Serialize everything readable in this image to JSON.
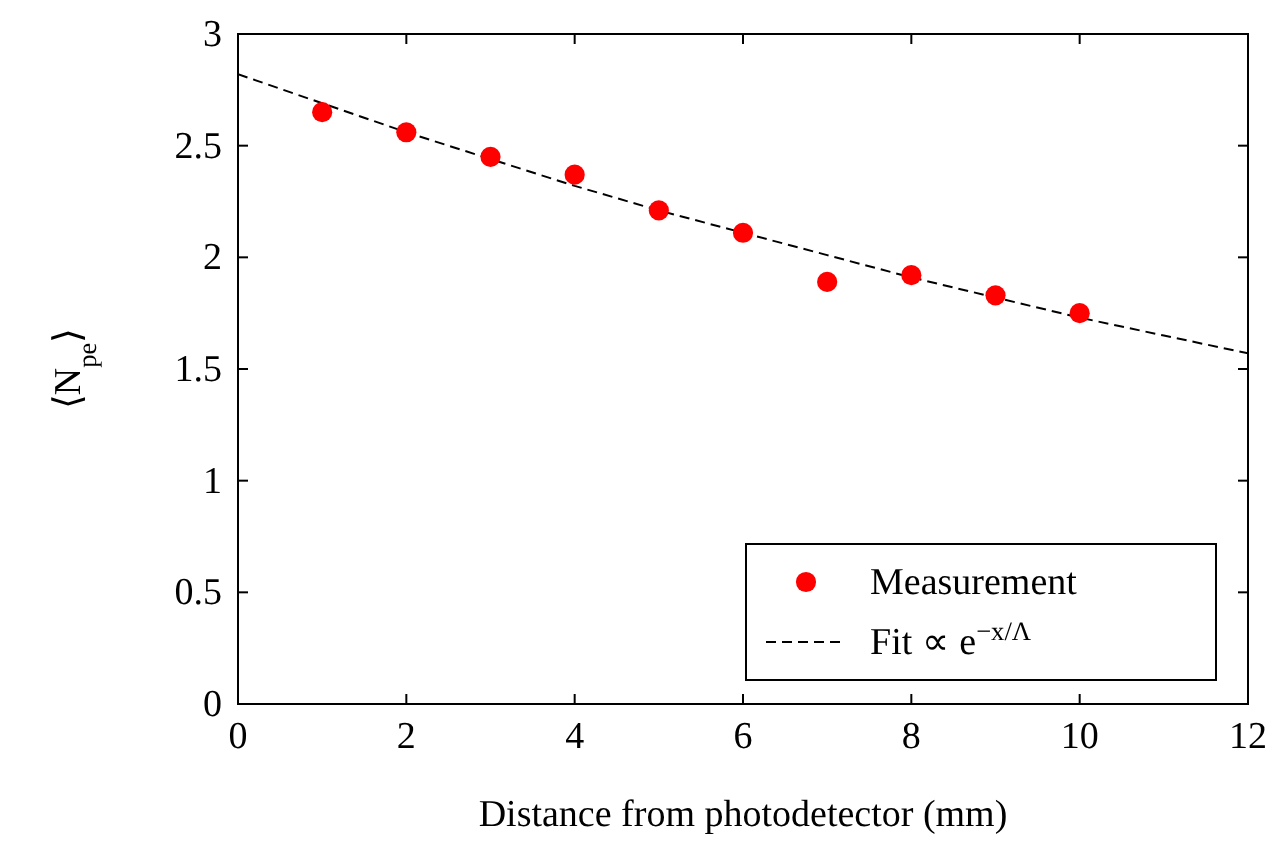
{
  "chart_data": {
    "type": "scatter",
    "xlabel": "Distance from photodetector (mm)",
    "ylabel": "⟨N$_{pe}$⟩",
    "xlim": [
      0,
      12
    ],
    "ylim": [
      0,
      3
    ],
    "xticks": [
      0,
      2,
      4,
      6,
      8,
      10,
      12
    ],
    "yticks": [
      0,
      0.5,
      1,
      1.5,
      2,
      2.5,
      3
    ],
    "legend": "bottom right",
    "grid": false,
    "series": [
      {
        "name": "Measurement",
        "marker": "circle",
        "color": "#ff0000",
        "x": [
          1,
          2,
          3,
          4,
          5,
          6,
          7,
          8,
          9,
          10
        ],
        "values": [
          2.65,
          2.56,
          2.45,
          2.37,
          2.21,
          2.11,
          1.89,
          1.92,
          1.83,
          1.75
        ]
      },
      {
        "name": "Fit ∝ e$^{−x/Λ}$",
        "type": "line",
        "line_style": "dashed",
        "marker": "none",
        "color": "#000000",
        "x": [
          0,
          1,
          2,
          3,
          4,
          5,
          6,
          7,
          8,
          9,
          10,
          11,
          12
        ],
        "values": [
          2.82,
          2.69,
          2.56,
          2.44,
          2.32,
          2.21,
          2.11,
          2.01,
          1.91,
          1.82,
          1.73,
          1.65,
          1.57
        ]
      }
    ]
  }
}
